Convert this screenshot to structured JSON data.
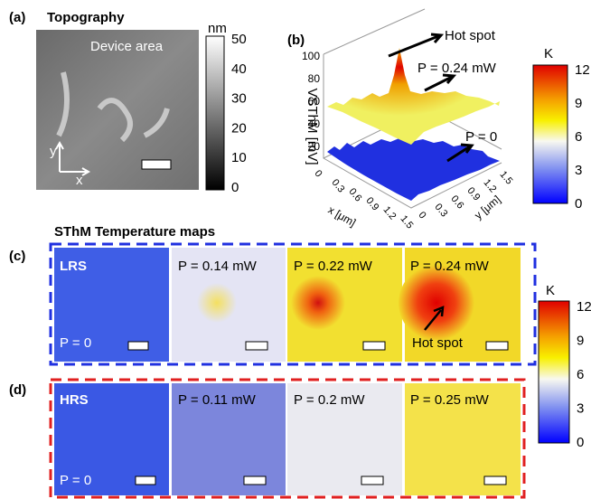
{
  "panel_a": {
    "label": "(a)",
    "title": "Topography",
    "annotation": "Device area",
    "axis_y": "y",
    "axis_x": "x",
    "colorbar": {
      "unit": "nm",
      "ticks": [
        50,
        40,
        30,
        20,
        10,
        0
      ]
    }
  },
  "panel_b": {
    "label": "(b)",
    "z_label": "VSThM [mV]",
    "z_ticks": [
      100,
      80,
      60,
      40,
      20
    ],
    "x_label": "x [μm]",
    "x_ticks": [
      0,
      0.3,
      0.6,
      0.9,
      1.2,
      1.5
    ],
    "y_label": "y [μm]",
    "y_ticks": [
      0,
      0.3,
      0.6,
      0.9,
      1.2,
      1.5
    ],
    "annotations": [
      "Hot spot",
      "P = 0.24 mW",
      "P = 0"
    ],
    "colorbar": {
      "unit": "K",
      "ticks": [
        12,
        9,
        6,
        3,
        0
      ]
    }
  },
  "section_title": "SThM Temperature maps",
  "panel_c": {
    "label": "(c)",
    "state": "LRS",
    "maps": [
      "P = 0",
      "P = 0.14 mW",
      "P = 0.22 mW",
      "P = 0.24 mW"
    ],
    "hot_spot": "Hot spot"
  },
  "panel_d": {
    "label": "(d)",
    "state": "HRS",
    "maps": [
      "P = 0",
      "P = 0.11 mW",
      "P = 0.2 mW",
      "P = 0.25 mW"
    ]
  },
  "colorbar": {
    "unit": "K",
    "ticks": [
      12,
      9,
      6,
      3,
      0
    ]
  }
}
